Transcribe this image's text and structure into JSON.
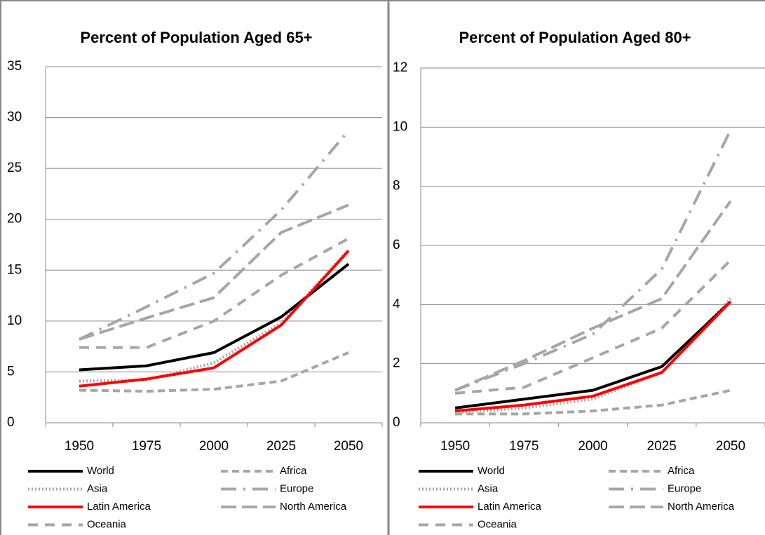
{
  "chart_data": [
    {
      "type": "line",
      "title": "Percent of Population Aged 65+",
      "categories": [
        "1950",
        "1975",
        "2000",
        "2025",
        "2050"
      ],
      "ylim": [
        0,
        35
      ],
      "yticks": [
        0,
        5,
        10,
        15,
        20,
        25,
        30,
        35
      ],
      "grid": true,
      "legend": "bottom",
      "series": [
        {
          "name": "World",
          "color": "#000000",
          "line_style": "solid",
          "values": [
            5.2,
            5.6,
            6.9,
            10.4,
            15.6
          ]
        },
        {
          "name": "Africa",
          "color": "#a6a6a6",
          "line_style": "dashed",
          "values": [
            3.2,
            3.1,
            3.3,
            4.1,
            6.9
          ]
        },
        {
          "name": "Asia",
          "color": "#a6a6a6",
          "line_style": "dotted",
          "values": [
            4.1,
            4.2,
            5.9,
            9.8,
            17.0
          ]
        },
        {
          "name": "Europe",
          "color": "#a6a6a6",
          "line_style": "dashdot",
          "values": [
            8.2,
            11.4,
            14.7,
            20.9,
            28.7
          ]
        },
        {
          "name": "Latin America",
          "color": "#ff0000",
          "line_style": "solid",
          "values": [
            3.6,
            4.3,
            5.4,
            9.6,
            16.9
          ]
        },
        {
          "name": "North America",
          "color": "#a6a6a6",
          "line_style": "longdash",
          "values": [
            8.2,
            10.3,
            12.3,
            18.7,
            21.4
          ]
        },
        {
          "name": "Oceania",
          "color": "#a6a6a6",
          "line_style": "mediumdash",
          "values": [
            7.4,
            7.4,
            10.0,
            14.5,
            18.1
          ]
        }
      ]
    },
    {
      "type": "line",
      "title": "Percent of Population Aged 80+",
      "categories": [
        "1950",
        "1975",
        "2000",
        "2025",
        "2050"
      ],
      "ylim": [
        0,
        12
      ],
      "yticks": [
        0,
        2,
        4,
        6,
        8,
        10,
        12
      ],
      "grid": true,
      "legend": "bottom",
      "series": [
        {
          "name": "World",
          "color": "#000000",
          "line_style": "solid",
          "values": [
            0.5,
            0.8,
            1.1,
            1.9,
            4.1
          ]
        },
        {
          "name": "Africa",
          "color": "#a6a6a6",
          "line_style": "dashed",
          "values": [
            0.3,
            0.3,
            0.4,
            0.6,
            1.1
          ]
        },
        {
          "name": "Asia",
          "color": "#a6a6a6",
          "line_style": "dotted",
          "values": [
            0.35,
            0.5,
            0.8,
            1.7,
            4.2
          ]
        },
        {
          "name": "Europe",
          "color": "#a6a6a6",
          "line_style": "dashdot",
          "values": [
            1.1,
            2.0,
            3.0,
            5.2,
            9.9
          ]
        },
        {
          "name": "Latin America",
          "color": "#ff0000",
          "line_style": "solid",
          "values": [
            0.4,
            0.6,
            0.9,
            1.7,
            4.1
          ]
        },
        {
          "name": "North America",
          "color": "#a6a6a6",
          "line_style": "longdash",
          "values": [
            1.1,
            2.1,
            3.2,
            4.2,
            7.5
          ]
        },
        {
          "name": "Oceania",
          "color": "#a6a6a6",
          "line_style": "mediumdash",
          "values": [
            1.0,
            1.2,
            2.2,
            3.2,
            5.5
          ]
        }
      ]
    }
  ]
}
